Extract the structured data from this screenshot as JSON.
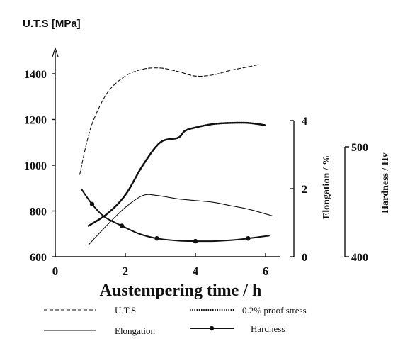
{
  "chart_data": {
    "type": "line",
    "title": "U.T.S [MPa]",
    "xlabel": "Austempering time / h",
    "ylabel_right_1": "Elongation / %",
    "ylabel_right_2": "Hardness / Hv",
    "xlim": [
      0,
      6.5
    ],
    "ylim_left": [
      600,
      1500
    ],
    "ylim_elongation": [
      0,
      4
    ],
    "ylim_hardness": [
      400,
      500
    ],
    "x_ticks": [
      "0",
      "2",
      "4",
      "6"
    ],
    "y_ticks_left": [
      "600",
      "800",
      "1000",
      "1200",
      "1400"
    ],
    "y_ticks_elongation": [
      "0",
      "2",
      "4"
    ],
    "y_ticks_hardness": [
      "400",
      "500"
    ],
    "series": [
      {
        "name": "U.T.S",
        "axis": "left",
        "style": "dashed",
        "x": [
          0.7,
          0.9,
          1.1,
          1.5,
          2.0,
          2.5,
          3.0,
          3.5,
          4.0,
          4.5,
          5.0,
          5.5,
          5.8
        ],
        "y": [
          960,
          1100,
          1200,
          1320,
          1390,
          1420,
          1425,
          1410,
          1390,
          1395,
          1415,
          1430,
          1440
        ]
      },
      {
        "name": "0.2% proof stress",
        "axis": "left",
        "style": "dotted",
        "x": [
          0.95,
          1.5,
          2.0,
          2.5,
          3.0,
          3.5,
          3.7,
          4.0,
          4.5,
          5.0,
          5.5,
          6.0
        ],
        "y": [
          735,
          790,
          870,
          1000,
          1100,
          1120,
          1150,
          1165,
          1180,
          1185,
          1185,
          1175
        ]
      },
      {
        "name": "Elongation",
        "axis": "elongation",
        "style": "solid",
        "x": [
          0.95,
          1.5,
          2.0,
          2.5,
          2.9,
          3.5,
          4.0,
          4.5,
          5.0,
          5.5,
          6.2
        ],
        "y": [
          0.35,
          0.95,
          1.45,
          1.8,
          1.8,
          1.7,
          1.65,
          1.6,
          1.5,
          1.4,
          1.2
        ]
      },
      {
        "name": "Hardness",
        "axis": "left",
        "style": "solid-marker",
        "x": [
          0.75,
          1.05,
          1.4,
          1.9,
          2.4,
          2.9,
          3.5,
          4.0,
          4.5,
          5.0,
          5.5,
          6.1
        ],
        "y": [
          895,
          830,
          775,
          735,
          700,
          680,
          670,
          668,
          668,
          672,
          680,
          692
        ],
        "markers_x": [
          1.05,
          1.9,
          2.9,
          4.0,
          5.5
        ]
      }
    ],
    "legend": {
      "placement": "bottom",
      "items": [
        "U.T.S",
        "0.2% proof stress",
        "Elongation",
        "Hardness"
      ]
    }
  }
}
